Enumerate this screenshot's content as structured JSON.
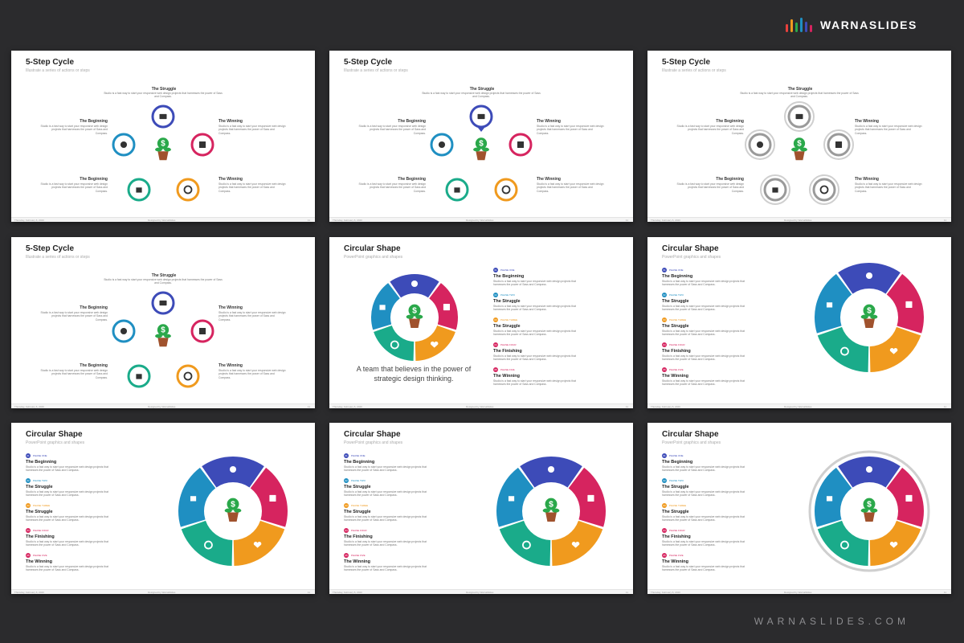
{
  "brand": {
    "name": "WARNASLIDES",
    "url": "WARNASLIDES.COM"
  },
  "colors": {
    "blue": "#3d4bb8",
    "magenta": "#d6245f",
    "teal": "#1aab8a",
    "orange": "#f09a1e",
    "cyan": "#1f8fc2",
    "green": "#2aa84a",
    "gray": "#9a9a9a",
    "pot": "#a0522d",
    "bg": "#2b2b2d"
  },
  "icons": [
    "envelope-icon",
    "dollar-plant-icon",
    "pie-chart-icon",
    "cash-register-icon",
    "shopping-bag-icon",
    "shutter-icon",
    "heart-message-icon"
  ],
  "footer": {
    "left": "Thursday, February 6, 2020",
    "center": "Designed by WarnaSlides",
    "page": "11"
  },
  "step_slide": {
    "title": "5-Step Cycle",
    "subtitle": "Illustrate a series of actions or steps",
    "struggle_head": "The Struggle",
    "struggle_body": "Studio is a fast way to start your responsive web design projects that harnesses the power of Sass and Compass.",
    "beginning_head": "The Beginning",
    "winning_head": "The Winning",
    "short_body": "Studio is a fast way to start your responsive web design projects that harnesses the power of Sass and Compass."
  },
  "circular_slide": {
    "title": "Circular Shape",
    "subtitle": "PowerPoint graphics and shapes",
    "quote": "A team that believes in the power of strategic design thinking.",
    "body": "Studio is a fast way to start your responsive web design projects that harnesses the power of Sass and Compass.",
    "phases": [
      {
        "num": "01",
        "label": "PHASE ONE",
        "head": "The Beginning"
      },
      {
        "num": "02",
        "label": "PHASE TWO",
        "head": "The Struggle"
      },
      {
        "num": "03",
        "label": "PHASE THREE",
        "head": "The Struggle"
      },
      {
        "num": "04",
        "label": "PHASE FOUR",
        "head": "The Finishing"
      },
      {
        "num": "05",
        "label": "PHASE FIVE",
        "head": "The Winning"
      }
    ]
  }
}
